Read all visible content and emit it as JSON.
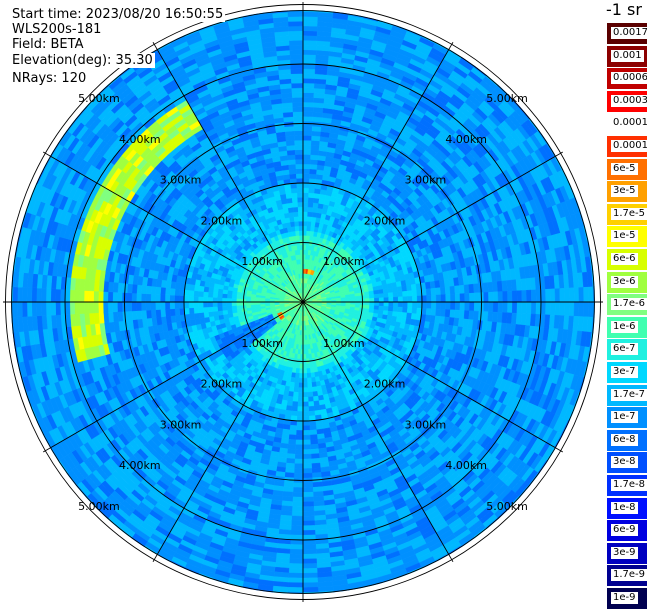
{
  "header": {
    "start_time": "Start time: 2023/08/20 16:50:55",
    "site": "WLS200s-181",
    "field": "Field: BETA",
    "elevation": "Elevation(deg): 35.30",
    "nrays": "NRays: 120"
  },
  "colorbar": {
    "unit": "-1 sr",
    "labels": [
      "0.0017",
      "0.001",
      "0.0006",
      "0.0003",
      "0.00017",
      "0.0001",
      "6e-5",
      "3e-5",
      "1.7e-5",
      "1e-5",
      "6e-6",
      "3e-6",
      "1.7e-6",
      "1e-6",
      "6e-7",
      "3e-7",
      "1.7e-7",
      "1e-7",
      "6e-8",
      "3e-8",
      "1.7e-8",
      "1e-8",
      "6e-9",
      "3e-9",
      "1.7e-9",
      "1e-9"
    ],
    "colors": [
      "#5a0000",
      "#8c0000",
      "#c00000",
      "#ff0000",
      "#ffffff",
      "#ff3000",
      "#ff7000",
      "#ffa000",
      "#ffd000",
      "#ffff00",
      "#d8ff00",
      "#a0ff40",
      "#80ff80",
      "#40ffb0",
      "#20f0e0",
      "#00d8ff",
      "#00b8ff",
      "#0090ff",
      "#0070ff",
      "#0050ff",
      "#0030ff",
      "#0010ff",
      "#0000e0",
      "#0000c0",
      "#000090",
      "#000050"
    ]
  },
  "chart_data": {
    "type": "heatmap",
    "projection": "polar PPI",
    "field": "BETA",
    "elevation_deg": 35.3,
    "nrays": 120,
    "range_rings_km": [
      1,
      2,
      3,
      4,
      5
    ],
    "range_labels": [
      "1.00km",
      "2.00km",
      "3.00km",
      "4.00km",
      "5.00km"
    ],
    "max_range_km": 5.2,
    "azimuth_lines_deg": [
      0,
      30,
      60,
      90,
      120,
      150,
      180,
      210,
      240,
      270,
      300,
      330
    ],
    "background_value": "1e-8 to 1e-7",
    "features": [
      {
        "name": "arc",
        "range_km": [
          3.4,
          3.9
        ],
        "azimuth_deg": [
          255,
          330
        ],
        "value": "1e-6 to 3e-6"
      },
      {
        "name": "near-field",
        "range_km": [
          0,
          1.1
        ],
        "azimuth_deg": [
          0,
          360
        ],
        "value": "1e-7 to 1.7e-7"
      },
      {
        "name": "hotspot",
        "range_km": [
          0.5,
          0.6
        ],
        "azimuth_deg": [
          0,
          20
        ],
        "value": "6e-5 to 0.0001"
      },
      {
        "name": "hotspot",
        "range_km": [
          0.4,
          0.5
        ],
        "azimuth_deg": [
          230,
          245
        ],
        "value": "3e-5 to 6e-5"
      }
    ],
    "color_scale": "log"
  }
}
